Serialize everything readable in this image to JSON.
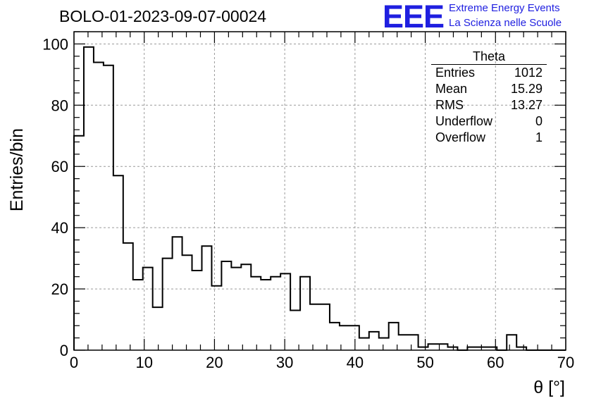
{
  "header": {
    "title": "BOLO-01-2023-09-07-00024",
    "logo": "EEE",
    "logo_line1": "Extreme Energy Events",
    "logo_line2": "La Scienza nelle Scuole"
  },
  "stats_box": {
    "title": "Theta",
    "rows": [
      {
        "label": "Entries",
        "value": "1012"
      },
      {
        "label": "Mean",
        "value": "15.29"
      },
      {
        "label": "RMS",
        "value": "13.27"
      },
      {
        "label": "Underflow",
        "value": "0"
      },
      {
        "label": "Overflow",
        "value": "1"
      }
    ]
  },
  "chart_data": {
    "type": "histogram",
    "title": "BOLO-01-2023-09-07-00024",
    "xlabel": "θ [°]",
    "ylabel": "Entries/bin",
    "xlim": [
      0,
      70
    ],
    "ylim": [
      0,
      104
    ],
    "bin_width": 1.4,
    "x_ticks": [
      "0",
      "10",
      "20",
      "30",
      "40",
      "50",
      "60",
      "70"
    ],
    "y_ticks": [
      "0",
      "20",
      "40",
      "60",
      "80",
      "100"
    ],
    "grid": true,
    "counts": [
      70,
      99,
      94,
      93,
      57,
      35,
      23,
      27,
      14,
      30,
      37,
      31,
      26,
      34,
      21,
      29,
      27,
      28,
      24,
      23,
      24,
      25,
      13,
      24,
      15,
      15,
      9,
      8,
      8,
      4,
      6,
      4,
      9,
      5,
      5,
      1,
      2,
      2,
      1,
      0,
      1,
      1,
      1,
      0,
      5,
      1,
      0,
      0,
      0,
      0
    ],
    "colors": {
      "line": "#000000",
      "grid": "#9a9a9a"
    }
  }
}
